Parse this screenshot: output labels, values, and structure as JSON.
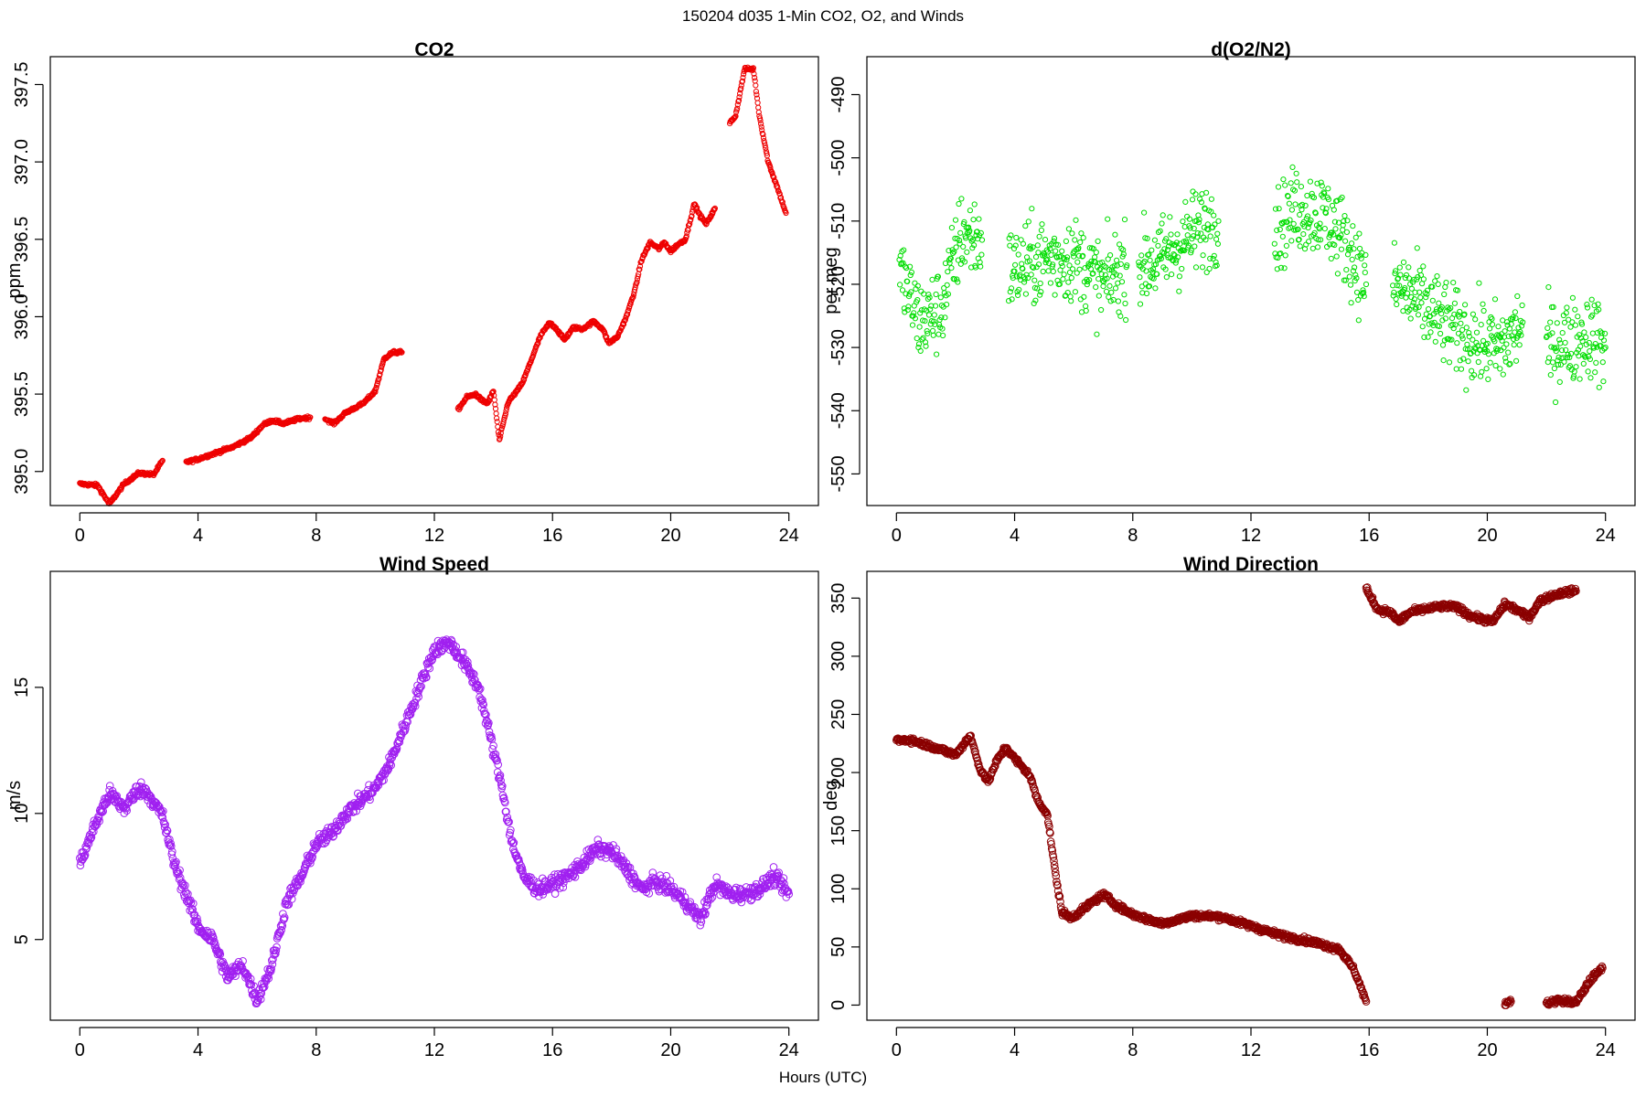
{
  "figure": {
    "title": "150204   d035   1-Min CO2, O2, and Winds",
    "xlabel": "Hours (UTC)"
  },
  "chart_data": [
    {
      "type": "scatter",
      "title": "CO2",
      "ylabel": "ppm",
      "xlim": [
        -1,
        25
      ],
      "ylim": [
        394.78,
        397.68
      ],
      "xticks": [
        0,
        4,
        8,
        12,
        16,
        20,
        24
      ],
      "yticks": [
        395.0,
        395.5,
        396.0,
        396.5,
        397.0,
        397.5
      ],
      "ytick_labels": [
        "395.0",
        "395.5",
        "396.0",
        "396.5",
        "397.0",
        "397.5"
      ],
      "color": "#ee0000",
      "marker_size": 2.6,
      "noise": 0.012,
      "series": [
        {
          "x": [
            0.0,
            0.6,
            1.0,
            1.5,
            2.0,
            2.5,
            2.8
          ],
          "y": [
            394.92,
            394.91,
            394.79,
            394.92,
            394.99,
            394.98,
            395.07
          ]
        },
        {
          "x": [
            3.6,
            4.0,
            4.6,
            5.2,
            5.8,
            6.2,
            6.5,
            6.9,
            7.4,
            7.8
          ],
          "y": [
            395.06,
            395.08,
            395.12,
            395.16,
            395.22,
            395.3,
            395.33,
            395.31,
            395.34,
            395.35
          ]
        },
        {
          "x": [
            8.3,
            8.6,
            9.0,
            9.6,
            10.0,
            10.3,
            10.6,
            10.9
          ],
          "y": [
            395.34,
            395.31,
            395.38,
            395.44,
            395.52,
            395.73,
            395.77,
            395.77
          ]
        },
        {
          "x": [
            12.8,
            13.1,
            13.4,
            13.6,
            13.8,
            14.0,
            14.2,
            14.5,
            14.8,
            15.0,
            15.3,
            15.6,
            15.9,
            16.1,
            16.4,
            16.7,
            17.0,
            17.4,
            17.7,
            17.9,
            18.2,
            18.5,
            18.8,
            19.0,
            19.3,
            19.6,
            19.8,
            20.0,
            20.2,
            20.5,
            20.8,
            21.0,
            21.2,
            21.5
          ],
          "y": [
            395.4,
            395.48,
            395.5,
            395.46,
            395.44,
            395.52,
            395.2,
            395.45,
            395.52,
            395.58,
            395.73,
            395.88,
            395.96,
            395.93,
            395.85,
            395.93,
            395.92,
            395.97,
            395.92,
            395.83,
            395.87,
            396.0,
            396.18,
            396.36,
            396.48,
            396.44,
            396.48,
            396.42,
            396.46,
            396.5,
            396.73,
            396.65,
            396.6,
            396.7
          ]
        },
        {
          "x": [
            22.0,
            22.2,
            22.5,
            22.8,
            23.0,
            23.3,
            23.6,
            23.9
          ],
          "y": [
            397.25,
            397.3,
            397.6,
            397.6,
            397.3,
            397.0,
            396.84,
            396.67
          ]
        }
      ]
    },
    {
      "type": "scatter",
      "title": "d(O2/N2)",
      "ylabel": "per meg",
      "xlim": [
        -1,
        25
      ],
      "ylim": [
        -555,
        -484
      ],
      "xticks": [
        0,
        4,
        8,
        12,
        16,
        20,
        24
      ],
      "yticks": [
        -550,
        -540,
        -530,
        -520,
        -510,
        -500,
        -490
      ],
      "ytick_labels": [
        "-550",
        "-540",
        "-530",
        "-520",
        "-510",
        "-500",
        "-490"
      ],
      "color": "#00dd00",
      "marker_size": 2.6,
      "noise": 8,
      "series": [
        {
          "x": [
            0.1,
            0.8,
            1.5,
            2.2,
            2.9
          ],
          "y": [
            -518,
            -526,
            -524,
            -512,
            -513
          ]
        },
        {
          "x": [
            3.8,
            5.0,
            6.0,
            7.0,
            7.8
          ],
          "y": [
            -518,
            -516,
            -516,
            -520,
            -517
          ]
        },
        {
          "x": [
            8.2,
            9.0,
            10.0,
            10.9
          ],
          "y": [
            -517,
            -516,
            -512,
            -510
          ]
        },
        {
          "x": [
            12.8,
            13.5,
            14.5,
            15.3,
            15.9
          ],
          "y": [
            -512,
            -508,
            -509,
            -514,
            -520
          ]
        },
        {
          "x": [
            16.8,
            17.5,
            18.5,
            19.5,
            20.5,
            21.2
          ],
          "y": [
            -520,
            -522,
            -526,
            -529,
            -530,
            -526
          ]
        },
        {
          "x": [
            22.0,
            22.8,
            23.5,
            24.0
          ],
          "y": [
            -530,
            -529,
            -528,
            -530
          ]
        }
      ]
    },
    {
      "type": "scatter",
      "title": "Wind Speed",
      "ylabel": "m/s",
      "xlim": [
        -1,
        25
      ],
      "ylim": [
        1.8,
        19.6
      ],
      "xticks": [
        0,
        4,
        8,
        12,
        16,
        20,
        24
      ],
      "yticks": [
        5,
        10,
        15
      ],
      "ytick_labels": [
        "5",
        "10",
        "15"
      ],
      "color": "#a020f0",
      "marker_size": 3.8,
      "noise": 0.35,
      "series": [
        {
          "x": [
            0.0,
            0.5,
            1.0,
            1.5,
            2.0,
            2.3,
            2.8,
            3.2,
            3.6,
            4.0,
            4.5,
            5.0,
            5.5,
            6.0,
            6.5,
            7.0,
            7.5,
            8.0,
            8.5,
            9.0,
            9.5,
            10.0,
            10.5,
            11.0,
            11.5,
            12.0,
            12.5,
            13.0,
            13.5,
            14.0,
            14.3,
            14.6,
            15.0,
            15.5,
            16.0,
            16.5,
            17.0,
            17.5,
            18.0,
            18.5,
            19.0,
            19.5,
            20.0,
            20.5,
            21.0,
            21.5,
            22.0,
            22.5,
            23.0,
            23.5,
            24.0
          ],
          "y": [
            8.0,
            9.5,
            10.8,
            10.2,
            11.0,
            10.8,
            9.9,
            8.0,
            6.8,
            5.5,
            5.0,
            3.5,
            4.0,
            2.6,
            4.0,
            6.5,
            7.5,
            8.8,
            9.2,
            10.0,
            10.5,
            11.0,
            12.0,
            13.5,
            15.0,
            16.5,
            16.8,
            16.0,
            15.0,
            12.5,
            11.0,
            9.0,
            7.5,
            7.0,
            7.2,
            7.5,
            8.0,
            8.6,
            8.5,
            7.8,
            7.0,
            7.3,
            7.0,
            6.5,
            5.8,
            7.2,
            6.8,
            6.8,
            7.0,
            7.5,
            6.8
          ]
        }
      ]
    },
    {
      "type": "scatter",
      "title": "Wind Direction",
      "ylabel": "deg",
      "xlim": [
        -1,
        25
      ],
      "ylim": [
        -13,
        373
      ],
      "xticks": [
        0,
        4,
        8,
        12,
        16,
        20,
        24
      ],
      "yticks": [
        0,
        50,
        100,
        150,
        200,
        250,
        300,
        350
      ],
      "ytick_labels": [
        "0",
        "50",
        "100",
        "150",
        "200",
        "250",
        "300",
        "350"
      ],
      "color": "#8b0000",
      "marker_size": 3.8,
      "noise": 3,
      "series": [
        {
          "x": [
            0.0,
            0.5,
            1.0,
            1.5,
            2.0,
            2.5,
            2.8,
            3.1,
            3.4,
            3.7,
            4.0,
            4.5,
            4.8,
            5.1,
            5.4,
            5.6,
            5.9,
            6.2,
            6.6,
            7.0,
            7.5,
            8.0,
            9.0,
            10.0,
            11.0,
            12.0,
            13.0,
            14.0,
            15.0,
            15.5,
            15.9
          ],
          "y": [
            228,
            228,
            224,
            220,
            215,
            232,
            205,
            192,
            210,
            222,
            212,
            198,
            175,
            165,
            110,
            80,
            75,
            80,
            88,
            95,
            85,
            78,
            70,
            77,
            76,
            68,
            60,
            55,
            48,
            30,
            3
          ]
        },
        {
          "x": [
            15.9,
            16.3,
            16.7,
            17.0,
            17.4,
            17.8,
            18.2,
            18.6,
            19.0,
            19.4,
            19.8,
            20.2,
            20.6,
            21.0,
            21.4,
            21.8,
            22.2,
            22.6,
            23.0
          ],
          "y": [
            358,
            340,
            338,
            330,
            338,
            340,
            342,
            343,
            342,
            335,
            332,
            330,
            345,
            340,
            333,
            348,
            352,
            355,
            356
          ]
        },
        {
          "x": [
            20.6,
            20.8
          ],
          "y": [
            2,
            3
          ]
        },
        {
          "x": [
            22.0,
            22.4,
            22.8,
            23.0,
            23.2,
            23.5,
            23.9
          ],
          "y": [
            2,
            4,
            3,
            2,
            10,
            22,
            32
          ]
        }
      ]
    }
  ]
}
